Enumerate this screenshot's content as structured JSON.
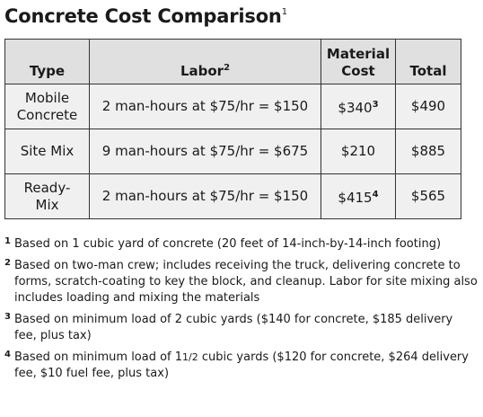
{
  "title": "Concrete Cost Comparison",
  "title_note": "1",
  "table": {
    "headers": {
      "type": "Type",
      "labor": "Labor",
      "labor_note": "2",
      "material_line1": "Material",
      "material_line2": "Cost",
      "total": "Total"
    },
    "rows": [
      {
        "type_line1": "Mobile",
        "type_line2": "Concrete",
        "labor": "2 man-hours at $75/hr = $150",
        "material": "$340",
        "material_note": "3",
        "total": "$490"
      },
      {
        "type_line1": "Site Mix",
        "type_line2": "",
        "labor": "9 man-hours at $75/hr = $675",
        "material": "$210",
        "material_note": "",
        "total": "$885"
      },
      {
        "type_line1": "Ready-",
        "type_line2": "Mix",
        "labor": "2 man-hours at $75/hr = $150",
        "material": "$415",
        "material_note": "4",
        "total": "$565"
      }
    ]
  },
  "footnotes": [
    {
      "num": "1",
      "text": "Based on 1 cubic yard of concrete (20 feet of 14-inch-by-14-inch footing)"
    },
    {
      "num": "2",
      "text": "Based on two-man crew; includes receiving the truck, delivering concrete to forms, scratch-coating to key the block, and cleanup. Labor for site mixing also includes loading and mixing the materials"
    },
    {
      "num": "3",
      "text": "Based on minimum load of 2 cubic yards ($140 for concrete, $185 delivery fee, plus tax)"
    },
    {
      "num": "4",
      "text_before": "Based on minimum load of 1",
      "fraction": "1/2",
      "text_after": "cubic yards ($120 for concrete, $264 delivery fee, $10 fuel fee, plus tax)"
    }
  ]
}
